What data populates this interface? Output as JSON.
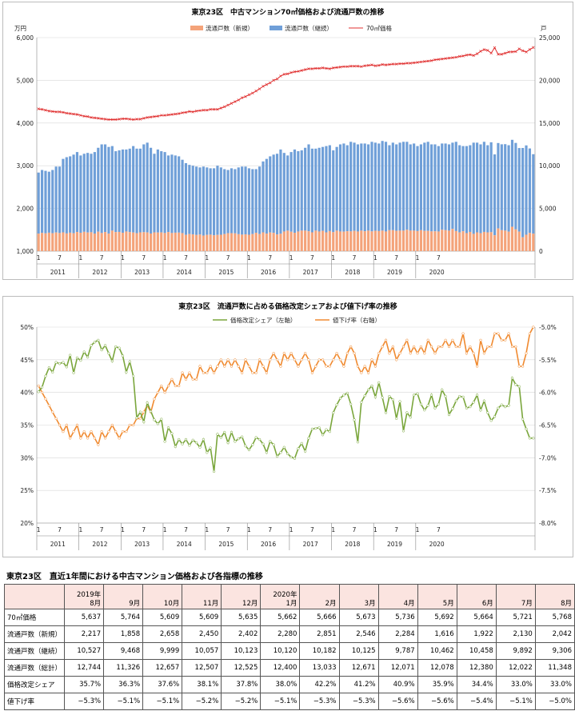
{
  "chart_data": [
    {
      "type": "bar+line",
      "title": "東京23区　中古マンション70㎡価格および流通戸数の推移",
      "ylabel_left": "万円",
      "ylabel_right": "戸",
      "ylim_left": [
        1000,
        6000
      ],
      "ylim_right": [
        0,
        25000
      ],
      "left_ticks": [
        "1,000",
        "2,000",
        "3,000",
        "4,000",
        "5,000",
        "6,000"
      ],
      "right_ticks": [
        "0",
        "5,000",
        "10,000",
        "15,000",
        "20,000",
        "25,000"
      ],
      "x_month_ticks": [
        "1",
        "7",
        "1",
        "7",
        "1",
        "7",
        "1",
        "7",
        "1",
        "7",
        "1",
        "7",
        "1",
        "7",
        "1",
        "7",
        "1",
        "7",
        "1",
        "7"
      ],
      "x_years": [
        "2011",
        "2012",
        "2013",
        "2014",
        "2015",
        "2016",
        "2017",
        "2018",
        "2019",
        "2020"
      ],
      "legend": [
        "流通戸数（新規）",
        "流通戸数（継続）",
        "70㎡価格"
      ],
      "colors": {
        "new": "#f4a37a",
        "cont": "#6f9fd8",
        "price": "#e03030"
      },
      "series_new": [
        2050,
        2130,
        2080,
        2160,
        2100,
        2180,
        2120,
        2200,
        2070,
        2160,
        2090,
        2240,
        2150,
        2260,
        2180,
        2210,
        2060,
        2280,
        2120,
        2240,
        2050,
        2400,
        2230,
        2250,
        2150,
        2300,
        2230,
        2180,
        2100,
        2200,
        2220,
        2190,
        2060,
        2200,
        2180,
        2190,
        2120,
        2240,
        2120,
        2160,
        2170,
        2110,
        1900,
        2000,
        1960,
        1890,
        1940,
        1820,
        1900,
        1930,
        1850,
        1900,
        1920,
        2000,
        2100,
        2100,
        2080,
        1980,
        1930,
        1960,
        1920,
        2000,
        2150,
        2000,
        2200,
        2050,
        2180,
        2140,
        1950,
        2030,
        2300,
        2400,
        2270,
        2150,
        2300,
        2400,
        2400,
        2320,
        2200,
        2400,
        2300,
        2380,
        2200,
        2350,
        2220,
        2400,
        2300,
        2280,
        2330,
        2310,
        2380,
        2300,
        2400,
        2330,
        2400,
        2310,
        2380,
        2350,
        2400,
        2300,
        2450,
        2450,
        2380,
        2400,
        2400,
        2500,
        2400,
        2400,
        2350,
        2450,
        2370,
        2370,
        2310,
        2320,
        2300,
        2500,
        2450,
        2400,
        2600,
        2350,
        2190,
        2330,
        2110,
        2250,
        2020,
        2200,
        2100,
        2250,
        2200,
        2217,
        1858,
        2658,
        2450,
        2402,
        2280,
        2851,
        2546,
        2284,
        1616,
        1922,
        2130,
        2042
      ],
      "series_total": [
        9200,
        9500,
        9400,
        9300,
        9500,
        9900,
        9900,
        10800,
        11000,
        11100,
        11300,
        11600,
        11200,
        11400,
        11500,
        11400,
        11600,
        12100,
        12500,
        12500,
        12200,
        12300,
        11700,
        11800,
        11900,
        11900,
        12000,
        12300,
        12000,
        12000,
        12500,
        12700,
        12100,
        11400,
        11900,
        11700,
        11600,
        11200,
        11300,
        11200,
        11100,
        10700,
        10300,
        10100,
        10000,
        9900,
        9800,
        9900,
        9800,
        9700,
        9700,
        10000,
        9800,
        9600,
        9500,
        9700,
        9600,
        9800,
        9900,
        9900,
        9700,
        9600,
        9600,
        9900,
        10500,
        10800,
        11100,
        11300,
        11400,
        11900,
        11500,
        11200,
        11600,
        11900,
        11700,
        11800,
        12100,
        12500,
        12000,
        12000,
        12100,
        12200,
        12300,
        12400,
        11800,
        12200,
        12500,
        12600,
        12400,
        12800,
        12700,
        12500,
        12600,
        12600,
        12500,
        12800,
        12700,
        12600,
        12900,
        12800,
        12400,
        12700,
        12500,
        12700,
        12800,
        12800,
        12500,
        12600,
        12300,
        12500,
        12700,
        12800,
        12500,
        12500,
        12300,
        12600,
        12600,
        12500,
        12700,
        12800,
        12400,
        12300,
        12300,
        12400,
        12700,
        12700,
        12500,
        12800,
        12400,
        12744,
        11326,
        12657,
        12507,
        12525,
        12400,
        13033,
        12671,
        12071,
        12078,
        12380,
        12022,
        11348
      ],
      "series_price": [
        4330,
        4320,
        4300,
        4280,
        4270,
        4260,
        4260,
        4250,
        4230,
        4220,
        4210,
        4200,
        4180,
        4160,
        4150,
        4130,
        4120,
        4110,
        4100,
        4090,
        4080,
        4080,
        4080,
        4090,
        4100,
        4100,
        4090,
        4080,
        4090,
        4090,
        4110,
        4130,
        4140,
        4150,
        4160,
        4180,
        4180,
        4190,
        4200,
        4210,
        4220,
        4240,
        4250,
        4270,
        4260,
        4280,
        4290,
        4300,
        4300,
        4320,
        4320,
        4320,
        4350,
        4380,
        4420,
        4460,
        4500,
        4540,
        4590,
        4620,
        4660,
        4700,
        4750,
        4800,
        4860,
        4900,
        4940,
        5000,
        5030,
        5100,
        5140,
        5150,
        5180,
        5200,
        5210,
        5230,
        5250,
        5270,
        5270,
        5280,
        5280,
        5290,
        5280,
        5270,
        5290,
        5300,
        5310,
        5320,
        5320,
        5330,
        5330,
        5330,
        5320,
        5340,
        5350,
        5360,
        5340,
        5350,
        5370,
        5360,
        5370,
        5380,
        5380,
        5390,
        5390,
        5400,
        5400,
        5410,
        5420,
        5430,
        5440,
        5450,
        5460,
        5480,
        5490,
        5500,
        5510,
        5520,
        5530,
        5540,
        5560,
        5570,
        5590,
        5600,
        5580,
        5620,
        5680,
        5720,
        5700,
        5637,
        5764,
        5609,
        5609,
        5635,
        5662,
        5666,
        5673,
        5736,
        5692,
        5664,
        5721,
        5768
      ]
    },
    {
      "type": "line",
      "title": "東京23区　流通戸数に占める価格改定シェアおよび値下げ率の推移",
      "ylim_left": [
        20,
        50
      ],
      "ylim_right": [
        -8.0,
        -5.0
      ],
      "left_ticks": [
        "20%",
        "25%",
        "30%",
        "35%",
        "40%",
        "45%",
        "50%"
      ],
      "right_ticks": [
        "-8.0%",
        "-7.5%",
        "-7.0%",
        "-6.5%",
        "-6.0%",
        "-5.5%",
        "-5.0%"
      ],
      "x_month_ticks": [
        "1",
        "7",
        "1",
        "7",
        "1",
        "7",
        "1",
        "7",
        "1",
        "7",
        "1",
        "7",
        "1",
        "7",
        "1",
        "7",
        "1",
        "7",
        "1",
        "7"
      ],
      "x_years": [
        "2011",
        "2012",
        "2013",
        "2014",
        "2015",
        "2016",
        "2017",
        "2018",
        "2019",
        "2020"
      ],
      "legend": [
        "価格改定シェア（左軸）",
        "値下げ率（右軸）"
      ],
      "colors": {
        "share": "#7aa63c",
        "cut": "#f08a30"
      },
      "series_share": [
        40.1,
        40.8,
        42.5,
        43.8,
        43.1,
        44.6,
        44.4,
        44.6,
        43.9,
        45.7,
        43.0,
        45.3,
        44.9,
        46.2,
        45.4,
        47.2,
        47.7,
        48.0,
        46.5,
        47.2,
        46.0,
        44.8,
        47.0,
        46.8,
        45.6,
        43.1,
        44.7,
        42.5,
        36.1,
        37.0,
        35.5,
        38.4,
        37.1,
        35.8,
        35.2,
        35.9,
        32.5,
        34.6,
        33.7,
        31.7,
        32.8,
        32.1,
        32.8,
        31.9,
        32.7,
        32.3,
        31.6,
        32.8,
        30.8,
        31.5,
        27.9,
        33.6,
        33.1,
        33.9,
        32.3,
        33.9,
        32.5,
        32.9,
        33.2,
        31.8,
        31.2,
        32.0,
        33.1,
        32.8,
        32.1,
        30.8,
        32.5,
        32.0,
        30.2,
        30.8,
        31.6,
        30.6,
        30.1,
        29.9,
        31.4,
        32.2,
        31.0,
        33.0,
        34.4,
        34.5,
        34.6,
        33.5,
        34.3,
        34.0,
        36.9,
        38.1,
        39.1,
        39.6,
        39.9,
        38.2,
        35.8,
        32.4,
        38.5,
        39.5,
        40.4,
        41.0,
        39.3,
        41.5,
        39.2,
        36.9,
        39.4,
        38.9,
        36.0,
        38.6,
        34.1,
        36.9,
        36.2,
        39.6,
        39.8,
        38.2,
        37.3,
        38.0,
        39.6,
        37.6,
        38.2,
        40.4,
        39.4,
        36.6,
        37.5,
        38.7,
        39.4,
        39.3,
        37.6,
        37.8,
        38.5,
        39.6,
        37.3,
        38.7,
        36.9,
        35.7,
        36.3,
        37.6,
        38.1,
        37.8,
        38.0,
        42.2,
        41.2,
        40.9,
        35.9,
        34.4,
        33.0,
        33.0
      ],
      "series_cut": [
        -5.9,
        -6.0,
        -6.1,
        -6.2,
        -6.3,
        -6.4,
        -6.5,
        -6.6,
        -6.5,
        -6.7,
        -6.6,
        -6.5,
        -6.7,
        -6.6,
        -6.7,
        -6.6,
        -6.7,
        -6.8,
        -6.6,
        -6.7,
        -6.6,
        -6.5,
        -6.6,
        -6.7,
        -6.6,
        -6.6,
        -6.5,
        -6.5,
        -6.4,
        -6.4,
        -6.3,
        -6.2,
        -6.3,
        -6.1,
        -6.0,
        -5.9,
        -6.0,
        -5.9,
        -5.8,
        -5.9,
        -5.9,
        -5.7,
        -5.8,
        -5.7,
        -5.8,
        -5.8,
        -5.6,
        -5.7,
        -5.7,
        -5.6,
        -5.7,
        -5.6,
        -5.5,
        -5.6,
        -5.5,
        -5.6,
        -5.5,
        -5.6,
        -5.7,
        -5.5,
        -5.6,
        -5.7,
        -5.7,
        -5.5,
        -5.6,
        -5.7,
        -5.5,
        -5.4,
        -5.5,
        -5.6,
        -5.4,
        -5.5,
        -5.4,
        -5.5,
        -5.6,
        -5.5,
        -5.4,
        -5.5,
        -5.7,
        -5.6,
        -5.5,
        -5.5,
        -5.6,
        -5.6,
        -5.5,
        -5.4,
        -5.5,
        -5.6,
        -5.4,
        -5.3,
        -5.4,
        -5.6,
        -5.7,
        -5.6,
        -5.7,
        -5.5,
        -5.6,
        -5.4,
        -5.3,
        -5.2,
        -5.4,
        -5.3,
        -5.5,
        -5.4,
        -5.3,
        -5.2,
        -5.4,
        -5.3,
        -5.4,
        -5.3,
        -5.4,
        -5.2,
        -5.3,
        -5.4,
        -5.3,
        -5.3,
        -5.2,
        -5.3,
        -5.2,
        -5.3,
        -5.3,
        -5.1,
        -5.4,
        -5.3,
        -5.4,
        -5.6,
        -5.2,
        -5.4,
        -5.3,
        -5.3,
        -5.1,
        -5.1,
        -5.2,
        -5.2,
        -5.1,
        -5.3,
        -5.3,
        -5.6,
        -5.6,
        -5.4,
        -5.1,
        -5.0
      ]
    },
    {
      "type": "table",
      "title": "東京23区　直近1年間における中古マンション価格および各指標の推移",
      "columns": [
        [
          "2019年",
          "8月"
        ],
        [
          "",
          "9月"
        ],
        [
          "",
          "10月"
        ],
        [
          "",
          "11月"
        ],
        [
          "",
          "12月"
        ],
        [
          "2020年",
          "1月"
        ],
        [
          "",
          "2月"
        ],
        [
          "",
          "3月"
        ],
        [
          "",
          "4月"
        ],
        [
          "",
          "5月"
        ],
        [
          "",
          "6月"
        ],
        [
          "",
          "7月"
        ],
        [
          "",
          "8月"
        ]
      ],
      "rows": [
        {
          "label": "70㎡価格",
          "values": [
            "5,637",
            "5,764",
            "5,609",
            "5,609",
            "5,635",
            "5,662",
            "5,666",
            "5,673",
            "5,736",
            "5,692",
            "5,664",
            "5,721",
            "5,768"
          ]
        },
        {
          "label": "流通戸数（新規）",
          "values": [
            "2,217",
            "1,858",
            "2,658",
            "2,450",
            "2,402",
            "2,280",
            "2,851",
            "2,546",
            "2,284",
            "1,616",
            "1,922",
            "2,130",
            "2,042"
          ]
        },
        {
          "label": "流通戸数（継続）",
          "values": [
            "10,527",
            "9,468",
            "9,999",
            "10,057",
            "10,123",
            "10,120",
            "10,182",
            "10,125",
            "9,787",
            "10,462",
            "10,458",
            "9,892",
            "9,306"
          ]
        },
        {
          "label": "流通戸数（総計）",
          "values": [
            "12,744",
            "11,326",
            "12,657",
            "12,507",
            "12,525",
            "12,400",
            "13,033",
            "12,671",
            "12,071",
            "12,078",
            "12,380",
            "12,022",
            "11,348"
          ]
        },
        {
          "label": "価格改定シェア",
          "values": [
            "35.7%",
            "36.3%",
            "37.6%",
            "38.1%",
            "37.8%",
            "38.0%",
            "42.2%",
            "41.2%",
            "40.9%",
            "35.9%",
            "34.4%",
            "33.0%",
            "33.0%"
          ]
        },
        {
          "label": "値下げ率",
          "values": [
            "−5.3%",
            "−5.1%",
            "−5.1%",
            "−5.2%",
            "−5.2%",
            "−5.1%",
            "−5.3%",
            "−5.3%",
            "−5.6%",
            "−5.6%",
            "−5.4%",
            "−5.1%",
            "−5.0%"
          ]
        }
      ]
    }
  ]
}
